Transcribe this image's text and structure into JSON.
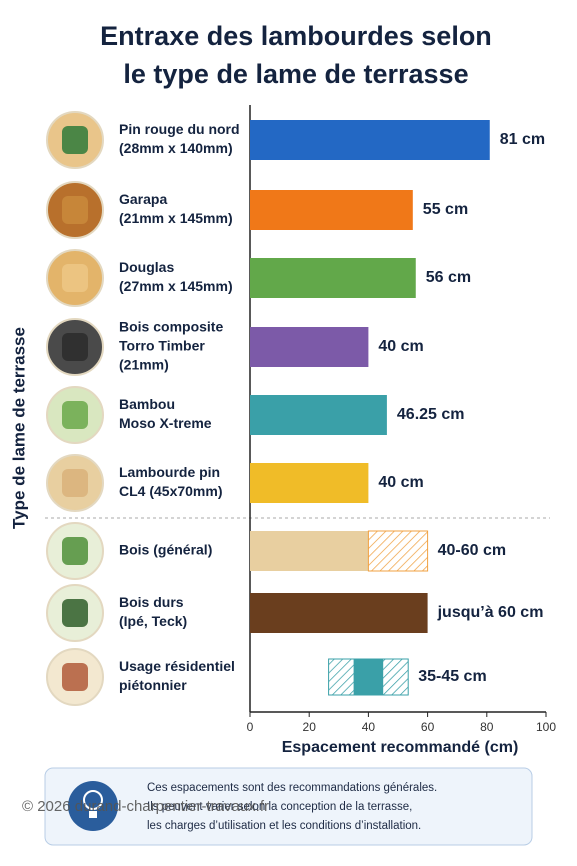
{
  "chart_data": {
    "type": "bar",
    "title": [
      "Entraxe des lambourdes selon",
      "le type de lame de terrasse"
    ],
    "ylabel": "Type de lame de terrasse",
    "xlabel": "Espacement recommandé (cm)",
    "categories": [
      [
        "Pin rouge du nord",
        "(28mm x 140mm)"
      ],
      [
        "Garapa",
        "(21mm x 145mm)"
      ],
      [
        "Douglas",
        "(27mm x 145mm)"
      ],
      [
        "Bois composite",
        "Torro Timber",
        "(21mm)"
      ],
      [
        "Bambou",
        "Moso X-treme"
      ],
      [
        "Lambourde pin",
        "CL4 (45x70mm)"
      ],
      [
        "Bois (général)"
      ],
      [
        "Bois durs",
        "(Ipé, Teck)"
      ],
      [
        "Usage résidentiel",
        "piétonnier"
      ]
    ],
    "values": [
      81,
      55,
      56,
      40,
      46.25,
      40,
      null,
      60,
      null
    ],
    "range_low": [
      null,
      null,
      null,
      null,
      null,
      null,
      40,
      null,
      35
    ],
    "range_high": [
      null,
      null,
      null,
      null,
      null,
      null,
      60,
      null,
      45
    ],
    "value_labels": [
      "81 cm",
      "55 cm",
      "56 cm",
      "40 cm",
      "46.25 cm",
      "40 cm",
      "40-60 cm",
      "jusqu’à 60 cm",
      "35-45 cm"
    ],
    "colors": [
      "#2368c4",
      "#f07818",
      "#62a84a",
      "#7c5aa8",
      "#3aa0a8",
      "#f0bc28",
      "#e8cfa0",
      "#6a3e1e",
      "#3aa0a8"
    ],
    "xlim": [
      0,
      100
    ],
    "xticks": [
      0,
      20,
      40,
      60,
      80,
      100
    ]
  },
  "note": [
    "Ces espacements sont des recommandations générales.",
    "Ils peuvent varier selon la conception de la terrasse,",
    "les charges d’utilisation et les conditions d’installation."
  ],
  "copyright": "© 2026 durand-charpentier-travaux.fr"
}
